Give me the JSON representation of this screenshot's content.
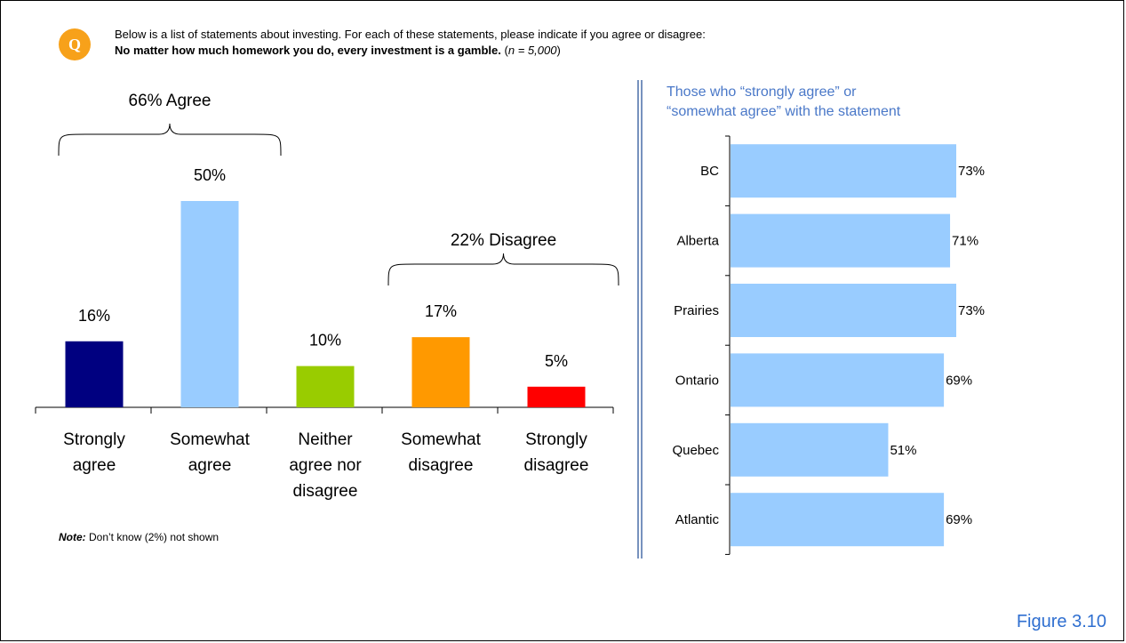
{
  "question": {
    "badge": "Q",
    "intro": "Below is a list of statements about investing.  For each of these statements, please indicate if you agree or disagree:",
    "statement": "No matter how much homework you do, every investment is a gamble.",
    "sample_prefix": "(",
    "sample_n": "n = 5,000",
    "sample_suffix": ")"
  },
  "note": {
    "label": "Note:",
    "text": " Don’t know (2%) not shown"
  },
  "figure_label": "Figure 3.10",
  "chart_data": [
    {
      "type": "bar",
      "categories": [
        [
          "Strongly",
          "agree"
        ],
        [
          "Somewhat",
          "agree"
        ],
        [
          "Neither",
          "agree nor",
          "disagree"
        ],
        [
          "Somewhat",
          "disagree"
        ],
        [
          "Strongly",
          "disagree"
        ]
      ],
      "values": [
        16,
        50,
        10,
        17,
        5
      ],
      "value_labels": [
        "16%",
        "50%",
        "10%",
        "17%",
        "5%"
      ],
      "colors": [
        "#000080",
        "#99ccff",
        "#99cc00",
        "#ff9900",
        "#ff0000"
      ],
      "groups": [
        {
          "label": "66% Agree",
          "categories": [
            0,
            1
          ]
        },
        {
          "label": "22% Disagree",
          "categories": [
            3,
            4
          ]
        }
      ],
      "ylim": [
        0,
        50
      ],
      "grid": false
    },
    {
      "type": "bar",
      "orientation": "horizontal",
      "title_lines": [
        "Those who “strongly agree” or",
        "“somewhat agree” with the statement"
      ],
      "title_color": "#4a78c8",
      "categories": [
        "BC",
        "Alberta",
        "Prairies",
        "Ontario",
        "Quebec",
        "Atlantic"
      ],
      "values": [
        73,
        71,
        73,
        69,
        51,
        69
      ],
      "value_labels": [
        "73%",
        "71%",
        "73%",
        "69%",
        "51%",
        "69%"
      ],
      "color": "#99ccff",
      "xlim": [
        0,
        73
      ],
      "grid": false
    }
  ]
}
